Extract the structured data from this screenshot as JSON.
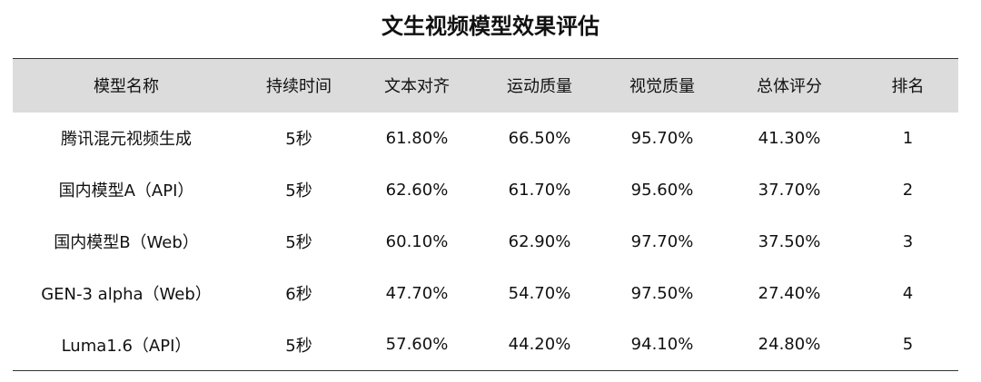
{
  "chart_data": {
    "type": "table",
    "title": "文生视频模型效果评估",
    "columns": [
      "模型名称",
      "持续时间",
      "文本对齐",
      "运动质量",
      "视觉质量",
      "总体评分",
      "排名"
    ],
    "rows": [
      [
        "腾讯混元视频生成",
        "5秒",
        "61.80%",
        "66.50%",
        "95.70%",
        "41.30%",
        "1"
      ],
      [
        "国内模型A（API）",
        "5秒",
        "62.60%",
        "61.70%",
        "95.60%",
        "37.70%",
        "2"
      ],
      [
        "国内模型B（Web）",
        "5秒",
        "60.10%",
        "62.90%",
        "97.70%",
        "37.50%",
        "3"
      ],
      [
        "GEN-3 alpha（Web）",
        "6秒",
        "47.70%",
        "54.70%",
        "97.50%",
        "27.40%",
        "4"
      ],
      [
        "Luma1.6（API）",
        "5秒",
        "57.60%",
        "44.20%",
        "94.10%",
        "24.80%",
        "5"
      ]
    ],
    "header_background": "#dcdcdc",
    "rule_color": "#333333"
  }
}
